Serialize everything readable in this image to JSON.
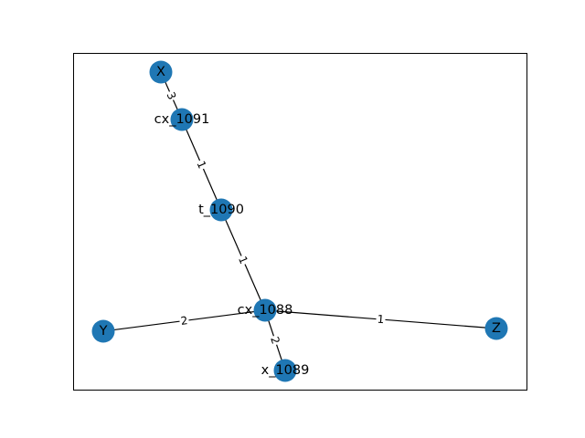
{
  "graph": {
    "node_color": "#1f77b4",
    "edge_color": "#000000",
    "nodes": [
      {
        "id": "X",
        "label": "X"
      },
      {
        "id": "cx_1091",
        "label": "cx_1091"
      },
      {
        "id": "t_1090",
        "label": "t_1090"
      },
      {
        "id": "cx_1088",
        "label": "cx_1088"
      },
      {
        "id": "x_1089",
        "label": "x_1089"
      },
      {
        "id": "Y",
        "label": "Y"
      },
      {
        "id": "Z",
        "label": "Z"
      }
    ],
    "edges": [
      {
        "source": "X",
        "target": "cx_1091",
        "label": "3"
      },
      {
        "source": "cx_1091",
        "target": "t_1090",
        "label": "1"
      },
      {
        "source": "t_1090",
        "target": "cx_1088",
        "label": "1"
      },
      {
        "source": "cx_1088",
        "target": "Y",
        "label": "2"
      },
      {
        "source": "cx_1088",
        "target": "Z",
        "label": "1"
      },
      {
        "source": "cx_1088",
        "target": "x_1089",
        "label": "2"
      }
    ]
  }
}
